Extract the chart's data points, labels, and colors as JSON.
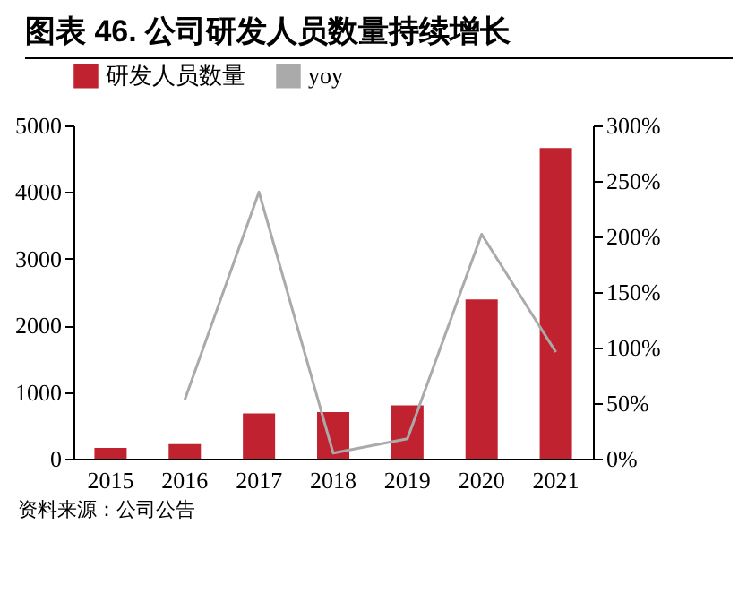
{
  "chart_data": {
    "type": "bar",
    "title": "图表 46. 公司研发人员数量持续增长",
    "categories": [
      "2015",
      "2016",
      "2017",
      "2018",
      "2019",
      "2020",
      "2021"
    ],
    "series": [
      {
        "name": "研发人员数量",
        "color": "#c0232f",
        "values": [
          160,
          220,
          680,
          700,
          800,
          2390,
          4660
        ]
      },
      {
        "name": "yoy",
        "type": "line",
        "axis": "y2",
        "color": "#aaaaaa",
        "values": [
          null,
          53,
          240,
          5,
          18,
          202,
          96
        ]
      }
    ],
    "ylim": [
      0,
      5000
    ],
    "yticks": [
      0,
      1000,
      2000,
      3000,
      4000,
      5000
    ],
    "y2lim": [
      0,
      300
    ],
    "y2ticks": [
      {
        "value": 0,
        "label": "0%"
      },
      {
        "value": 50,
        "label": "50%"
      },
      {
        "value": 100,
        "label": "100%"
      },
      {
        "value": 150,
        "label": "150%"
      },
      {
        "value": 200,
        "label": "200%"
      },
      {
        "value": 250,
        "label": "250%"
      },
      {
        "value": 300,
        "label": "300%"
      }
    ],
    "grid": false,
    "legend": "top",
    "annotations": [
      "资料来源：公司公告"
    ]
  }
}
